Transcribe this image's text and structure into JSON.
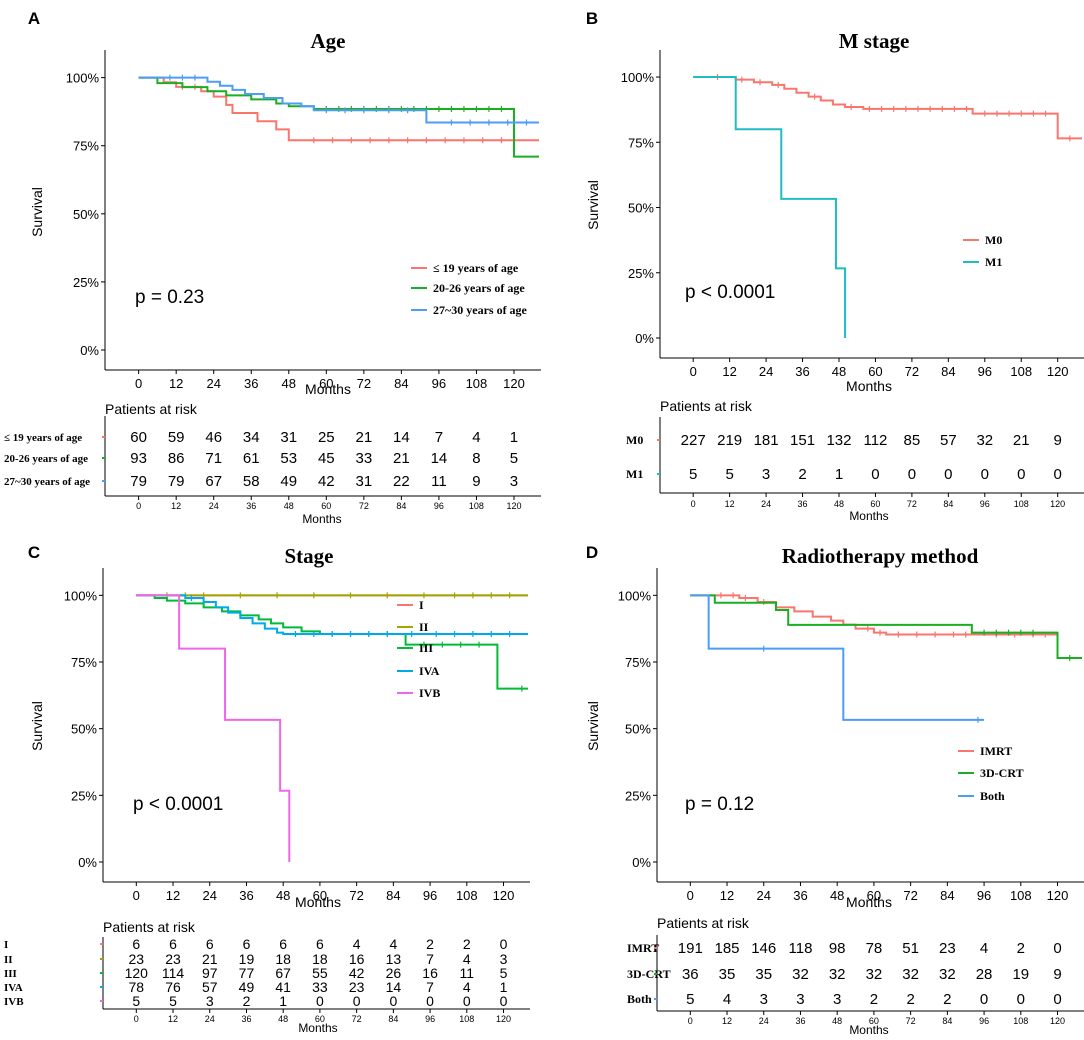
{
  "figure_colors": {
    "axis": "#000000"
  },
  "chart_data": [
    {
      "panel_label": "A",
      "type": "line",
      "title": "Age",
      "xlabel": "Months",
      "ylabel": "Survival",
      "xlim": [
        -5,
        128
      ],
      "ylim": [
        0,
        1.05
      ],
      "x_ticks": [
        0,
        12,
        24,
        36,
        48,
        60,
        72,
        84,
        96,
        108,
        120
      ],
      "y_ticks": [
        0,
        0.25,
        0.5,
        0.75,
        1.0
      ],
      "y_tick_labels": [
        "0%",
        "25%",
        "50%",
        "75%",
        "100%"
      ],
      "p_value": "p = 0.23",
      "legend_position": "center-right",
      "series": [
        {
          "name": "≤ 19 years of age",
          "color": "#F8766D",
          "steps": [
            [
              0,
              1.0
            ],
            [
              8,
              0.983
            ],
            [
              12,
              0.966
            ],
            [
              20,
              0.95
            ],
            [
              24,
              0.93
            ],
            [
              28,
              0.9
            ],
            [
              30,
              0.87
            ],
            [
              38,
              0.84
            ],
            [
              44,
              0.81
            ],
            [
              48,
              0.77
            ],
            [
              128,
              0.77
            ]
          ],
          "censor": [
            14,
            18,
            56,
            62,
            68,
            74,
            80,
            86,
            92,
            98,
            104,
            110,
            116
          ]
        },
        {
          "name": "20-26 years of age",
          "color": "#1AAF22",
          "steps": [
            [
              0,
              1.0
            ],
            [
              6,
              0.98
            ],
            [
              14,
              0.965
            ],
            [
              22,
              0.95
            ],
            [
              28,
              0.935
            ],
            [
              36,
              0.92
            ],
            [
              44,
              0.905
            ],
            [
              48,
              0.895
            ],
            [
              56,
              0.885
            ],
            [
              120,
              0.885
            ],
            [
              120,
              0.71
            ],
            [
              128,
              0.71
            ]
          ],
          "censor": [
            60,
            64,
            68,
            72,
            76,
            80,
            84,
            88,
            92,
            96,
            100,
            104,
            108,
            112,
            116
          ]
        },
        {
          "name": "27~30 years of age",
          "color": "#4D9CF5",
          "steps": [
            [
              0,
              1.0
            ],
            [
              22,
              0.985
            ],
            [
              26,
              0.97
            ],
            [
              30,
              0.955
            ],
            [
              34,
              0.94
            ],
            [
              40,
              0.925
            ],
            [
              46,
              0.905
            ],
            [
              52,
              0.895
            ],
            [
              56,
              0.88
            ],
            [
              92,
              0.88
            ],
            [
              92,
              0.835
            ],
            [
              128,
              0.835
            ]
          ],
          "censor": [
            10,
            14,
            18,
            60,
            66,
            72,
            80,
            86,
            100,
            106,
            112,
            118,
            124
          ]
        }
      ],
      "risk_table": {
        "title": "Patients at risk",
        "xlabel": "Months",
        "rows": [
          {
            "label": "≤ 19 years of age",
            "counts": [
              60,
              59,
              46,
              34,
              31,
              25,
              21,
              14,
              7,
              4,
              1
            ]
          },
          {
            "label": "20-26 years of age",
            "counts": [
              93,
              86,
              71,
              61,
              53,
              45,
              33,
              21,
              14,
              8,
              5
            ]
          },
          {
            "label": "27~30 years of age",
            "counts": [
              79,
              79,
              67,
              58,
              49,
              42,
              31,
              22,
              11,
              9,
              3
            ]
          }
        ]
      }
    },
    {
      "panel_label": "B",
      "type": "line",
      "title": "M stage",
      "xlabel": "Months",
      "ylabel": "Survival",
      "xlim": [
        -5,
        128
      ],
      "ylim": [
        0,
        1.05
      ],
      "x_ticks": [
        0,
        12,
        24,
        36,
        48,
        60,
        72,
        84,
        96,
        108,
        120
      ],
      "y_ticks": [
        0,
        0.25,
        0.5,
        0.75,
        1.0
      ],
      "y_tick_labels": [
        "0%",
        "25%",
        "50%",
        "75%",
        "100%"
      ],
      "p_value": "p < 0.0001",
      "legend_position": "center-right",
      "series": [
        {
          "name": "M0",
          "color": "#F8766D",
          "steps": [
            [
              0,
              1.0
            ],
            [
              14,
              0.99
            ],
            [
              20,
              0.98
            ],
            [
              26,
              0.97
            ],
            [
              30,
              0.955
            ],
            [
              34,
              0.94
            ],
            [
              38,
              0.925
            ],
            [
              42,
              0.91
            ],
            [
              46,
              0.895
            ],
            [
              50,
              0.885
            ],
            [
              56,
              0.878
            ],
            [
              92,
              0.878
            ],
            [
              92,
              0.86
            ],
            [
              120,
              0.86
            ],
            [
              120,
              0.765
            ],
            [
              128,
              0.765
            ]
          ],
          "censor": [
            8,
            16,
            22,
            28,
            40,
            52,
            58,
            62,
            66,
            70,
            74,
            78,
            82,
            86,
            90,
            96,
            100,
            104,
            108,
            112,
            116,
            124
          ]
        },
        {
          "name": "M1",
          "color": "#20BCC0",
          "steps": [
            [
              0,
              1.0
            ],
            [
              14,
              1.0
            ],
            [
              14,
              0.8
            ],
            [
              29,
              0.8
            ],
            [
              29,
              0.533
            ],
            [
              47,
              0.533
            ],
            [
              47,
              0.267
            ],
            [
              50,
              0.267
            ],
            [
              50,
              0.0
            ]
          ],
          "censor": []
        }
      ],
      "risk_table": {
        "title": "Patients at risk",
        "xlabel": "Months",
        "rows": [
          {
            "label": "M0",
            "counts": [
              227,
              219,
              181,
              151,
              132,
              112,
              85,
              57,
              32,
              21,
              9
            ]
          },
          {
            "label": "M1",
            "counts": [
              5,
              5,
              3,
              2,
              1,
              0,
              0,
              0,
              0,
              0,
              0
            ]
          }
        ]
      }
    },
    {
      "panel_label": "C",
      "type": "line",
      "title": "Stage",
      "xlabel": "Months",
      "ylabel": "Survival",
      "xlim": [
        -5,
        128
      ],
      "ylim": [
        0,
        1.05
      ],
      "x_ticks": [
        0,
        12,
        24,
        36,
        48,
        60,
        72,
        84,
        96,
        108,
        120
      ],
      "y_ticks": [
        0,
        0.25,
        0.5,
        0.75,
        1.0
      ],
      "y_tick_labels": [
        "0%",
        "25%",
        "50%",
        "75%",
        "100%"
      ],
      "p_value": "p < 0.0001",
      "legend_position": "center-right",
      "series": [
        {
          "name": "I",
          "color": "#F8766D",
          "steps": [
            [
              0,
              1.0
            ],
            [
              128,
              1.0
            ]
          ],
          "censor": []
        },
        {
          "name": "II",
          "color": "#A3A500",
          "steps": [
            [
              0,
              1.0
            ],
            [
              128,
              1.0
            ]
          ],
          "censor": [
            10,
            16,
            22,
            34,
            46,
            58,
            70,
            82,
            94,
            104,
            110,
            116,
            122
          ]
        },
        {
          "name": "III",
          "color": "#00BA38",
          "steps": [
            [
              0,
              1.0
            ],
            [
              6,
              0.99
            ],
            [
              10,
              0.98
            ],
            [
              16,
              0.97
            ],
            [
              22,
              0.955
            ],
            [
              28,
              0.94
            ],
            [
              34,
              0.925
            ],
            [
              40,
              0.91
            ],
            [
              44,
              0.895
            ],
            [
              48,
              0.88
            ],
            [
              54,
              0.865
            ],
            [
              60,
              0.855
            ],
            [
              88,
              0.855
            ],
            [
              88,
              0.815
            ],
            [
              118,
              0.815
            ],
            [
              118,
              0.65
            ],
            [
              128,
              0.65
            ]
          ],
          "censor": [
            64,
            70,
            76,
            82,
            94,
            100,
            106,
            112,
            126
          ]
        },
        {
          "name": "IVA",
          "color": "#00A9E9",
          "steps": [
            [
              0,
              1.0
            ],
            [
              16,
              0.99
            ],
            [
              22,
              0.975
            ],
            [
              26,
              0.955
            ],
            [
              30,
              0.935
            ],
            [
              34,
              0.915
            ],
            [
              38,
              0.895
            ],
            [
              42,
              0.875
            ],
            [
              46,
              0.86
            ],
            [
              48,
              0.855
            ],
            [
              128,
              0.855
            ]
          ],
          "censor": [
            18,
            52,
            58,
            64,
            70,
            76,
            82,
            90,
            98,
            104,
            110,
            116,
            122
          ]
        },
        {
          "name": "IVB",
          "color": "#F066EA",
          "steps": [
            [
              0,
              1.0
            ],
            [
              14,
              1.0
            ],
            [
              14,
              0.8
            ],
            [
              29,
              0.8
            ],
            [
              29,
              0.533
            ],
            [
              47,
              0.533
            ],
            [
              47,
              0.267
            ],
            [
              50,
              0.267
            ],
            [
              50,
              0.0
            ]
          ],
          "censor": []
        }
      ],
      "risk_table": {
        "title": "Patients at risk",
        "xlabel": "Months",
        "rows": [
          {
            "label": "I",
            "counts": [
              6,
              6,
              6,
              6,
              6,
              6,
              4,
              4,
              2,
              2,
              0
            ]
          },
          {
            "label": "II",
            "counts": [
              23,
              23,
              21,
              19,
              18,
              18,
              16,
              13,
              7,
              4,
              3
            ]
          },
          {
            "label": "III",
            "counts": [
              120,
              114,
              97,
              77,
              67,
              55,
              42,
              26,
              16,
              11,
              5
            ]
          },
          {
            "label": "IVA",
            "counts": [
              78,
              76,
              57,
              49,
              41,
              33,
              23,
              14,
              7,
              4,
              1
            ]
          },
          {
            "label": "IVB",
            "counts": [
              5,
              5,
              3,
              2,
              1,
              0,
              0,
              0,
              0,
              0,
              0
            ]
          }
        ]
      }
    },
    {
      "panel_label": "D",
      "type": "line",
      "title": "Radiotherapy method",
      "xlabel": "Months",
      "ylabel": "Survival",
      "xlim": [
        -5,
        128
      ],
      "ylim": [
        0,
        1.05
      ],
      "x_ticks": [
        0,
        12,
        24,
        36,
        48,
        60,
        72,
        84,
        96,
        108,
        120
      ],
      "y_ticks": [
        0,
        0.25,
        0.5,
        0.75,
        1.0
      ],
      "y_tick_labels": [
        "0%",
        "25%",
        "50%",
        "75%",
        "100%"
      ],
      "p_value": "p = 0.12",
      "legend_position": "center-right",
      "series": [
        {
          "name": "IMRT",
          "color": "#F8766D",
          "steps": [
            [
              0,
              1.0
            ],
            [
              16,
              0.99
            ],
            [
              22,
              0.975
            ],
            [
              28,
              0.955
            ],
            [
              34,
              0.94
            ],
            [
              40,
              0.92
            ],
            [
              46,
              0.905
            ],
            [
              50,
              0.89
            ],
            [
              54,
              0.875
            ],
            [
              60,
              0.86
            ],
            [
              64,
              0.853
            ],
            [
              120,
              0.853
            ]
          ],
          "censor": [
            10,
            14,
            18,
            24,
            58,
            62,
            68,
            74,
            80,
            86,
            90,
            100,
            106,
            112,
            116
          ]
        },
        {
          "name": "3D-CRT",
          "color": "#1AAF22",
          "steps": [
            [
              0,
              1.0
            ],
            [
              8,
              1.0
            ],
            [
              8,
              0.972
            ],
            [
              28,
              0.972
            ],
            [
              28,
              0.945
            ],
            [
              32,
              0.945
            ],
            [
              32,
              0.889
            ],
            [
              92,
              0.889
            ],
            [
              92,
              0.86
            ],
            [
              120,
              0.86
            ],
            [
              120,
              0.765
            ],
            [
              128,
              0.765
            ]
          ],
          "censor": [
            96,
            100,
            104,
            108,
            112,
            124
          ]
        },
        {
          "name": "Both",
          "color": "#4D9CF5",
          "steps": [
            [
              0,
              1.0
            ],
            [
              6,
              1.0
            ],
            [
              6,
              0.8
            ],
            [
              50,
              0.8
            ],
            [
              50,
              0.533
            ],
            [
              96,
              0.533
            ]
          ],
          "censor": [
            24,
            94
          ]
        }
      ],
      "risk_table": {
        "title": "Patients at risk",
        "xlabel": "Months",
        "rows": [
          {
            "label": "IMRT",
            "counts": [
              191,
              185,
              146,
              118,
              98,
              78,
              51,
              23,
              4,
              2,
              0
            ]
          },
          {
            "label": "3D-CRT",
            "counts": [
              36,
              35,
              35,
              32,
              32,
              32,
              32,
              32,
              28,
              19,
              9
            ]
          },
          {
            "label": "Both",
            "counts": [
              5,
              4,
              3,
              3,
              3,
              2,
              2,
              2,
              0,
              0,
              0
            ]
          }
        ]
      }
    }
  ]
}
